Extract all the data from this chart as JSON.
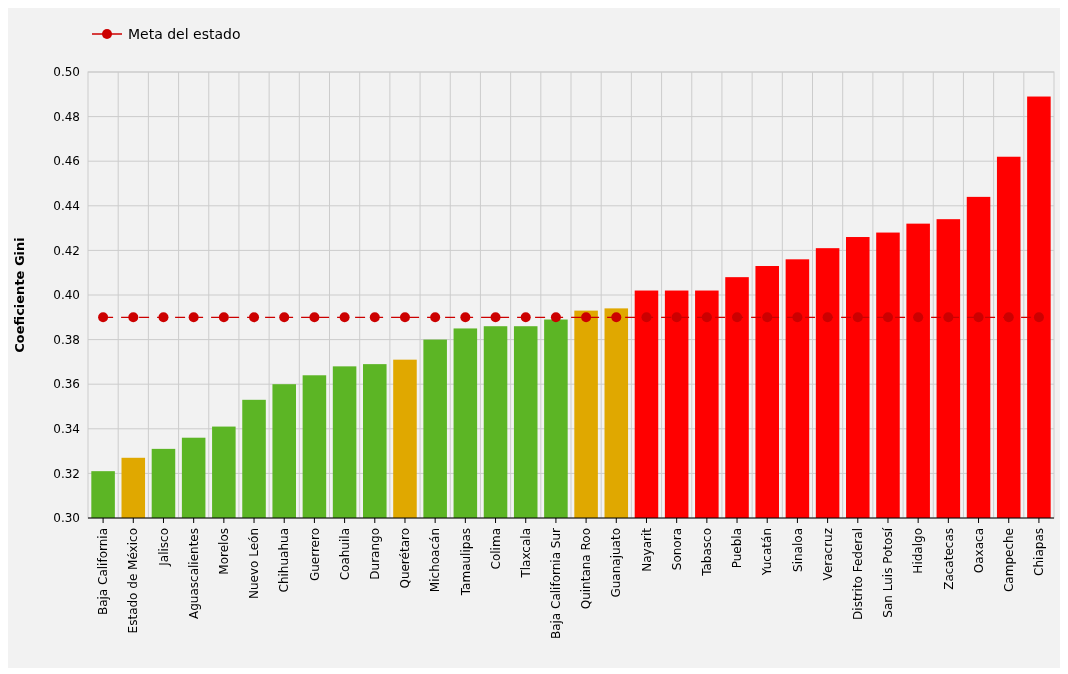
{
  "chart_data": {
    "type": "bar",
    "ylabel": "Coeficiente Gini",
    "categories": [
      "Baja California",
      "Estado de México",
      "Jalisco",
      "Aguascalientes",
      "Morelos",
      "Nuevo León",
      "Chihuahua",
      "Guerrero",
      "Coahuila",
      "Durango",
      "Querétaro",
      "Michoacán",
      "Tamaulipas",
      "Colima",
      "Tlaxcala",
      "Baja California Sur",
      "Quintana Roo",
      "Guanajuato",
      "Nayarit",
      "Sonora",
      "Tabasco",
      "Puebla",
      "Yucatán",
      "Sinaloa",
      "Veracruz",
      "Distrito Federal",
      "San Luis Potosí",
      "Hidalgo",
      "Zacatecas",
      "Oaxaca",
      "Campeche",
      "Chiapas"
    ],
    "series": [
      {
        "colors": [
          "#5cb525",
          "#e0a800",
          "#5cb525",
          "#5cb525",
          "#5cb525",
          "#5cb525",
          "#5cb525",
          "#5cb525",
          "#5cb525",
          "#5cb525",
          "#e0a800",
          "#5cb525",
          "#5cb525",
          "#5cb525",
          "#5cb525",
          "#5cb525",
          "#e0a800",
          "#e0a800",
          "#ff0000",
          "#ff0000",
          "#ff0000",
          "#ff0000",
          "#ff0000",
          "#ff0000",
          "#ff0000",
          "#ff0000",
          "#ff0000",
          "#ff0000",
          "#ff0000",
          "#ff0000",
          "#ff0000",
          "#ff0000"
        ],
        "values": [
          0.321,
          0.327,
          0.331,
          0.336,
          0.341,
          0.353,
          0.36,
          0.364,
          0.368,
          0.369,
          0.371,
          0.38,
          0.385,
          0.386,
          0.386,
          0.389,
          0.393,
          0.394,
          0.402,
          0.402,
          0.402,
          0.408,
          0.413,
          0.416,
          0.421,
          0.426,
          0.428,
          0.432,
          0.434,
          0.444,
          0.462,
          0.489
        ]
      },
      {
        "type": "line",
        "name": "Meta del estado",
        "color": "#cc0000",
        "marker": "circle",
        "line_style": "dashed",
        "values": [
          0.39,
          0.39,
          0.39,
          0.39,
          0.39,
          0.39,
          0.39,
          0.39,
          0.39,
          0.39,
          0.39,
          0.39,
          0.39,
          0.39,
          0.39,
          0.39,
          0.39,
          0.39,
          0.39,
          0.39,
          0.39,
          0.39,
          0.39,
          0.39,
          0.39,
          0.39,
          0.39,
          0.39,
          0.39,
          0.39,
          0.39,
          0.39
        ]
      }
    ],
    "ylim": [
      0.3,
      0.5
    ],
    "yticks": [
      {
        "value": 0.3,
        "label": "0.30"
      },
      {
        "value": 0.32,
        "label": "0.32"
      },
      {
        "value": 0.34,
        "label": "0.34"
      },
      {
        "value": 0.36,
        "label": "0.36"
      },
      {
        "value": 0.38,
        "label": "0.38"
      },
      {
        "value": 0.4,
        "label": "0.40"
      },
      {
        "value": 0.42,
        "label": "0.42"
      },
      {
        "value": 0.44,
        "label": "0.44"
      },
      {
        "value": 0.46,
        "label": "0.46"
      },
      {
        "value": 0.48,
        "label": "0.48"
      },
      {
        "value": 0.5,
        "label": "0.50"
      }
    ],
    "grid": true,
    "legend": "top left"
  }
}
